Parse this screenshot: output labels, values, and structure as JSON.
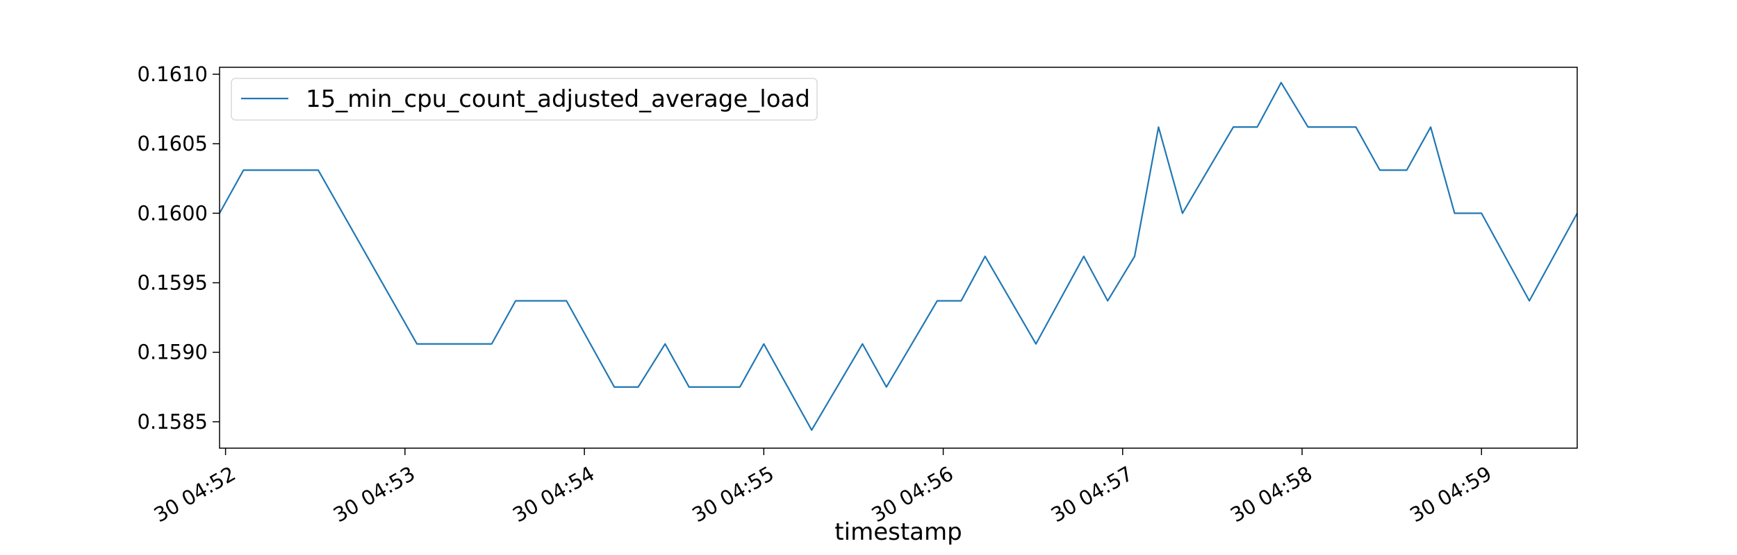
{
  "chart_data": {
    "type": "line",
    "title": "",
    "xlabel": "timestamp",
    "ylabel": "",
    "grid": false,
    "legend_position": "top-left",
    "line_color": "#1f77b4",
    "xlim": [
      "04:51:58",
      "04:59:32"
    ],
    "ylim": [
      0.15831,
      0.16105
    ],
    "x_ticks": [
      {
        "value": "04:52:00",
        "label": "30 04:52"
      },
      {
        "value": "04:53:00",
        "label": "30 04:53"
      },
      {
        "value": "04:54:00",
        "label": "30 04:54"
      },
      {
        "value": "04:55:00",
        "label": "30 04:55"
      },
      {
        "value": "04:56:00",
        "label": "30 04:56"
      },
      {
        "value": "04:57:00",
        "label": "30 04:57"
      },
      {
        "value": "04:58:00",
        "label": "30 04:58"
      },
      {
        "value": "04:59:00",
        "label": "30 04:59"
      }
    ],
    "y_ticks": [
      {
        "value": 0.1585,
        "label": "0.1585"
      },
      {
        "value": 0.159,
        "label": "0.1590"
      },
      {
        "value": 0.1595,
        "label": "0.1595"
      },
      {
        "value": 0.16,
        "label": "0.1600"
      },
      {
        "value": 0.1605,
        "label": "0.1605"
      },
      {
        "value": 0.161,
        "label": "0.1610"
      }
    ],
    "series": [
      {
        "name": "15_min_cpu_count_adjusted_average_load",
        "x": [
          "04:51:58",
          "04:52:06",
          "04:52:31",
          "04:53:04",
          "04:53:29",
          "04:53:37",
          "04:53:54",
          "04:54:10",
          "04:54:18",
          "04:54:27",
          "04:54:35",
          "04:54:52",
          "04:55:00",
          "04:55:16",
          "04:55:33",
          "04:55:41",
          "04:55:58",
          "04:56:06",
          "04:56:14",
          "04:56:31",
          "04:56:47",
          "04:56:55",
          "04:57:04",
          "04:57:12",
          "04:57:20",
          "04:57:37",
          "04:57:45",
          "04:57:53",
          "04:58:02",
          "04:58:18",
          "04:58:26",
          "04:58:35",
          "04:58:43",
          "04:58:51",
          "04:59:00",
          "04:59:16",
          "04:59:32"
        ],
        "values": [
          0.16,
          0.16031,
          0.16031,
          0.15906,
          0.15906,
          0.15937,
          0.15937,
          0.15875,
          0.15875,
          0.15906,
          0.15875,
          0.15875,
          0.15906,
          0.15844,
          0.15906,
          0.15875,
          0.15937,
          0.15937,
          0.15969,
          0.15906,
          0.15969,
          0.15937,
          0.15969,
          0.16062,
          0.16,
          0.16062,
          0.16062,
          0.16094,
          0.16062,
          0.16062,
          0.16031,
          0.16031,
          0.16062,
          0.16,
          0.16,
          0.15937,
          0.16
        ]
      }
    ]
  }
}
